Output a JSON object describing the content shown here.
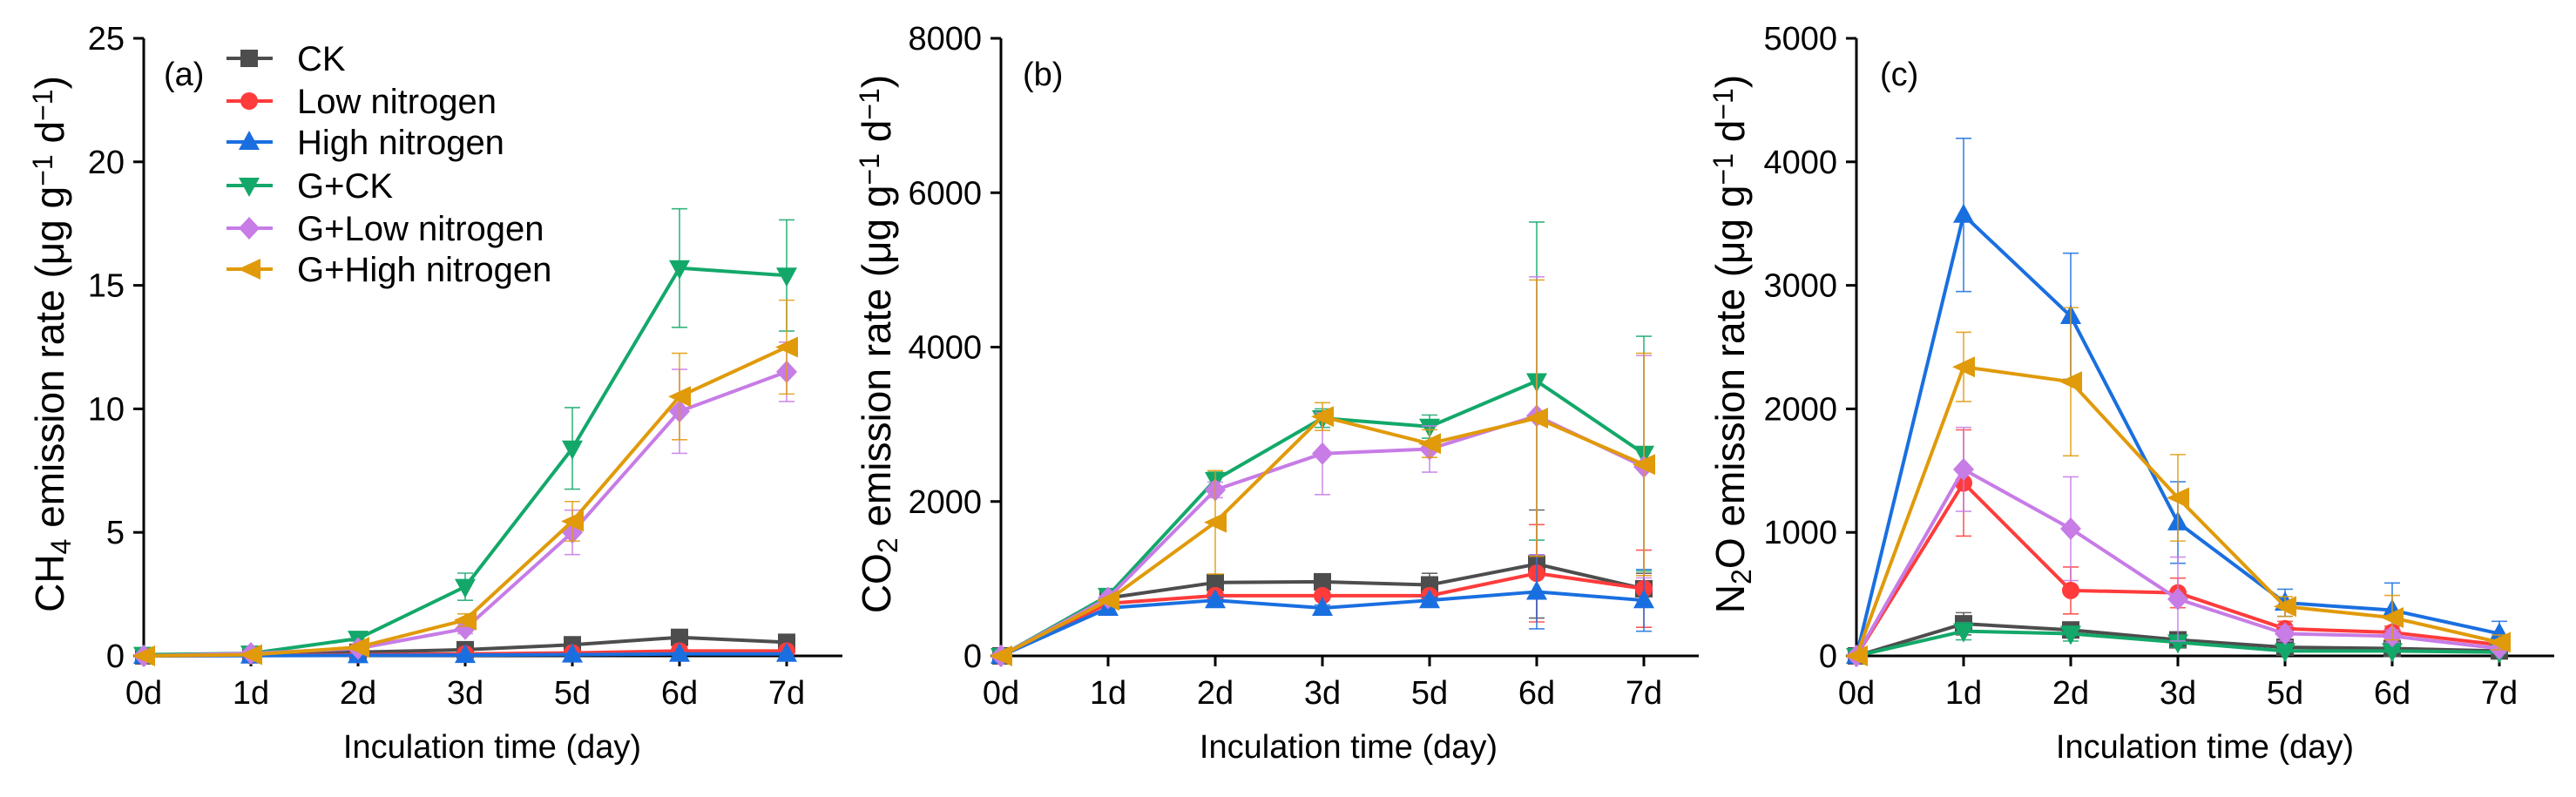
{
  "legend": [
    {
      "name": "CK",
      "color": "#4d4d4d",
      "marker": "square"
    },
    {
      "name": "Low nitrogen",
      "color": "#ff3b3b",
      "marker": "circle"
    },
    {
      "name": "High nitrogen",
      "color": "#1a6fe0",
      "marker": "triangle-up"
    },
    {
      "name": "G+CK",
      "color": "#13a86a",
      "marker": "triangle-down"
    },
    {
      "name": "G+Low nitrogen",
      "color": "#c77ce6",
      "marker": "diamond"
    },
    {
      "name": "G+High nitrogen",
      "color": "#e09a0a",
      "marker": "triangle-left"
    }
  ],
  "chart_data": [
    {
      "type": "line",
      "panel_label": "(a)",
      "categories": [
        "0d",
        "1d",
        "2d",
        "3d",
        "5d",
        "6d",
        "7d"
      ],
      "xlabel": "Inculation time (day)",
      "ylabel": {
        "pre": "CH",
        "sub": "4",
        "mid": " emission rate (μg g",
        "sup1": "−1",
        "mid2": " d",
        "sup2": "−1",
        "end": ")"
      },
      "ylim": [
        0,
        25
      ],
      "yticks": [
        "0",
        "5",
        "10",
        "15",
        "20",
        "25"
      ],
      "legend_position": "top-left",
      "series": [
        {
          "name": "CK",
          "values": [
            0,
            0.05,
            0.15,
            0.25,
            0.45,
            0.75,
            0.55
          ],
          "err": [
            0,
            0,
            0,
            0,
            0.1,
            0.15,
            0.1
          ]
        },
        {
          "name": "Low nitrogen",
          "values": [
            0,
            0.02,
            0.05,
            0.08,
            0.12,
            0.2,
            0.2
          ],
          "err": [
            0,
            0,
            0,
            0,
            0,
            0.05,
            0.05
          ]
        },
        {
          "name": "High nitrogen",
          "values": [
            0,
            0.01,
            0.02,
            0.03,
            0.05,
            0.08,
            0.08
          ],
          "err": [
            0,
            0,
            0,
            0,
            0,
            0,
            0
          ]
        },
        {
          "name": "G+CK",
          "values": [
            0.05,
            0.1,
            0.7,
            2.8,
            8.4,
            15.7,
            15.4
          ],
          "err": [
            0,
            0,
            0.1,
            0.55,
            1.65,
            2.4,
            2.25
          ]
        },
        {
          "name": "G+Low nitrogen",
          "values": [
            0,
            0.1,
            0.3,
            1.1,
            5.0,
            9.9,
            11.5
          ],
          "err": [
            0,
            0,
            0.05,
            0.2,
            0.9,
            1.7,
            1.2
          ]
        },
        {
          "name": "G+High nitrogen",
          "values": [
            0,
            0.05,
            0.35,
            1.45,
            5.45,
            10.5,
            12.5
          ],
          "err": [
            0,
            0,
            0.1,
            0.25,
            0.8,
            1.75,
            1.9
          ]
        }
      ]
    },
    {
      "type": "line",
      "panel_label": "(b)",
      "categories": [
        "0d",
        "1d",
        "2d",
        "3d",
        "5d",
        "6d",
        "7d"
      ],
      "xlabel": "Inculation time (day)",
      "ylabel": {
        "pre": "CO",
        "sub": "2",
        "mid": " emission rate (μg g",
        "sup1": "−1",
        "mid2": " d",
        "sup2": "−1",
        "end": ")"
      },
      "ylim": [
        0,
        8000
      ],
      "yticks": [
        "0",
        "2000",
        "4000",
        "6000",
        "8000"
      ],
      "series": [
        {
          "name": "CK",
          "values": [
            0,
            750,
            950,
            960,
            920,
            1190,
            870
          ],
          "err": [
            0,
            0,
            60,
            80,
            150,
            700,
            200
          ]
        },
        {
          "name": "Low nitrogen",
          "values": [
            0,
            680,
            780,
            780,
            780,
            1070,
            870
          ],
          "err": [
            0,
            0,
            40,
            40,
            40,
            630,
            500
          ]
        },
        {
          "name": "High nitrogen",
          "values": [
            0,
            620,
            720,
            620,
            720,
            830,
            720
          ],
          "err": [
            0,
            0,
            40,
            40,
            40,
            480,
            400
          ]
        },
        {
          "name": "G+CK",
          "values": [
            0,
            780,
            2280,
            3080,
            2970,
            3560,
            2620
          ],
          "err": [
            0,
            0,
            100,
            120,
            150,
            2060,
            1520
          ]
        },
        {
          "name": "G+Low nitrogen",
          "values": [
            0,
            750,
            2150,
            2620,
            2680,
            3110,
            2450
          ],
          "err": [
            0,
            0,
            100,
            530,
            300,
            1800,
            1440
          ]
        },
        {
          "name": "G+High nitrogen",
          "values": [
            0,
            720,
            1730,
            3100,
            2750,
            3080,
            2480
          ],
          "err": [
            0,
            0,
            670,
            180,
            180,
            1790,
            1440
          ]
        }
      ]
    },
    {
      "type": "line",
      "panel_label": "(c)",
      "categories": [
        "0d",
        "1d",
        "2d",
        "3d",
        "5d",
        "6d",
        "7d"
      ],
      "xlabel": "Inculation time (day)",
      "ylabel": {
        "pre": "N",
        "sub": "2",
        "mid": "O emission rate (μg g",
        "sup1": "−1",
        "mid2": " d",
        "sup2": "−1",
        "end": ")"
      },
      "ylim": [
        0,
        5000
      ],
      "yticks": [
        "0",
        "1000",
        "2000",
        "3000",
        "4000",
        "5000"
      ],
      "series": [
        {
          "name": "CK",
          "values": [
            0,
            260,
            210,
            130,
            70,
            60,
            40
          ],
          "err": [
            0,
            90,
            60,
            40,
            20,
            20,
            10
          ]
        },
        {
          "name": "Low nitrogen",
          "values": [
            0,
            1400,
            530,
            510,
            220,
            190,
            90
          ],
          "err": [
            0,
            430,
            190,
            120,
            60,
            50,
            20
          ]
        },
        {
          "name": "High nitrogen",
          "values": [
            0,
            3570,
            2750,
            1080,
            430,
            370,
            180
          ],
          "err": [
            0,
            620,
            510,
            330,
            110,
            220,
            100
          ]
        },
        {
          "name": "G+CK",
          "values": [
            0,
            200,
            180,
            110,
            40,
            40,
            30
          ],
          "err": [
            0,
            70,
            60,
            40,
            10,
            10,
            10
          ]
        },
        {
          "name": "G+Low nitrogen",
          "values": [
            0,
            1510,
            1030,
            460,
            180,
            160,
            60
          ],
          "err": [
            0,
            340,
            420,
            340,
            60,
            50,
            20
          ]
        },
        {
          "name": "G+High nitrogen",
          "values": [
            0,
            2340,
            2220,
            1280,
            400,
            310,
            110
          ],
          "err": [
            0,
            280,
            600,
            350,
            80,
            180,
            60
          ]
        }
      ]
    }
  ]
}
